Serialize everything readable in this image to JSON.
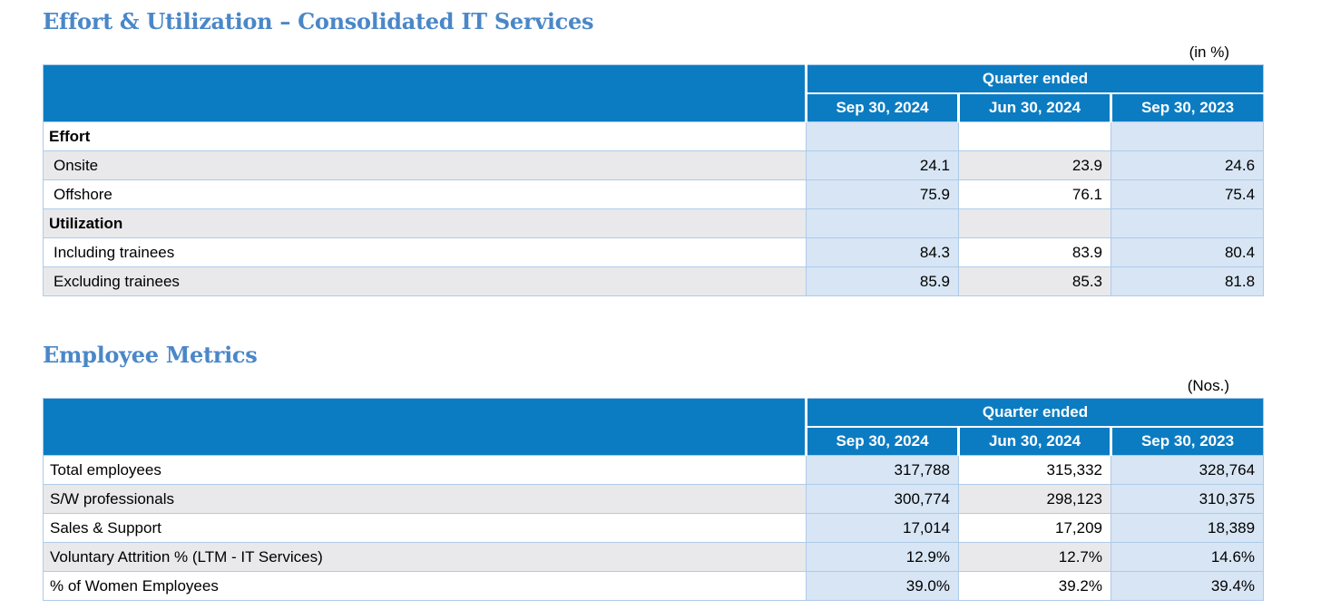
{
  "colors": {
    "header_bg": "#0c7cc2",
    "header_text": "#ffffff",
    "title_text": "#4a87c8",
    "highlight_column_bg": "#d7e5f4",
    "stripe_row_bg": "#e9e9eb",
    "table_border": "#a9c7e7",
    "body_text": "#000000"
  },
  "tables": [
    {
      "title": "Effort & Utilization – Consolidated IT Services",
      "unit_note": "(in %)",
      "header": {
        "group_label": "Quarter ended",
        "columns": [
          "Sep 30, 2024",
          "Jun 30, 2024",
          "Sep 30, 2023"
        ]
      },
      "rows": [
        {
          "label": "Effort",
          "style": "section",
          "values": [
            "",
            "",
            ""
          ]
        },
        {
          "label": "Onsite",
          "style": "data",
          "values": [
            "24.1",
            "23.9",
            "24.6"
          ]
        },
        {
          "label": "Offshore",
          "style": "data",
          "values": [
            "75.9",
            "76.1",
            "75.4"
          ]
        },
        {
          "label": "Utilization",
          "style": "section",
          "values": [
            "",
            "",
            ""
          ]
        },
        {
          "label": "Including trainees",
          "style": "data",
          "values": [
            "84.3",
            "83.9",
            "80.4"
          ]
        },
        {
          "label": "Excluding trainees",
          "style": "data",
          "values": [
            "85.9",
            "85.3",
            "81.8"
          ]
        }
      ]
    },
    {
      "title": "Employee Metrics",
      "unit_note": "(Nos.)",
      "header": {
        "group_label": "Quarter ended",
        "columns": [
          "Sep 30, 2024",
          "Jun 30, 2024",
          "Sep 30, 2023"
        ]
      },
      "rows": [
        {
          "label": "Total employees",
          "style": "data",
          "values": [
            "317,788",
            "315,332",
            "328,764"
          ]
        },
        {
          "label": "S/W professionals",
          "style": "data",
          "values": [
            "300,774",
            "298,123",
            "310,375"
          ]
        },
        {
          "label": "Sales & Support",
          "style": "data",
          "values": [
            "17,014",
            "17,209",
            "18,389"
          ]
        },
        {
          "label": "Voluntary Attrition % (LTM - IT Services)",
          "style": "data",
          "values": [
            "12.9%",
            "12.7%",
            "14.6%"
          ]
        },
        {
          "label": "% of Women Employees",
          "style": "data",
          "values": [
            "39.0%",
            "39.2%",
            "39.4%"
          ]
        }
      ]
    }
  ]
}
